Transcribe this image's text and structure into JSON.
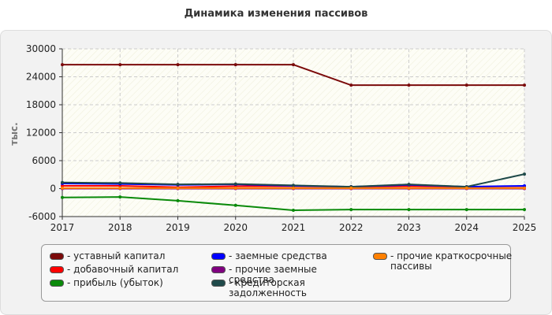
{
  "chart_data": {
    "type": "line",
    "title": "Динамика изменения пассивов",
    "y_label": "тыс.",
    "x": [
      2017,
      2018,
      2019,
      2020,
      2021,
      2022,
      2023,
      2024,
      2025
    ],
    "xlim": [
      2017,
      2025
    ],
    "xticks": [
      2017,
      2018,
      2019,
      2020,
      2021,
      2022,
      2023,
      2024,
      2025
    ],
    "ylim": [
      -6000,
      30000
    ],
    "yticks": [
      -6000,
      0,
      6000,
      12000,
      18000,
      24000,
      30000
    ],
    "grid": true,
    "series": [
      {
        "name": "- уставный капитал",
        "color": "#7b0a0a",
        "values": [
          26600,
          26600,
          26600,
          26600,
          26600,
          22200,
          22200,
          22200,
          22200
        ]
      },
      {
        "name": "- добавочный капитал",
        "color": "#ff0000",
        "values": [
          600,
          600,
          300,
          500,
          500,
          400,
          500,
          400,
          500
        ]
      },
      {
        "name": "- прибыль (убыток)",
        "color": "#0a8a0a",
        "values": [
          -1900,
          -1800,
          -2600,
          -3600,
          -4650,
          -4500,
          -4500,
          -4500,
          -4500
        ]
      },
      {
        "name": "- заемные средства",
        "color": "#0000ff",
        "values": [
          1100,
          1000,
          800,
          900,
          600,
          400,
          800,
          400,
          600
        ]
      },
      {
        "name": "- прочие заемные средства",
        "color": "#800080",
        "values": [
          0,
          0,
          0,
          0,
          0,
          0,
          0,
          0,
          0
        ]
      },
      {
        "name": "- кредиторская задолженность",
        "color": "#1f4a4a",
        "values": [
          1300,
          1200,
          900,
          1000,
          700,
          400,
          900,
          400,
          3100
        ]
      },
      {
        "name": "- прочие краткосрочные пассивы",
        "color": "#ff8000",
        "values": [
          100,
          100,
          100,
          100,
          100,
          100,
          100,
          100,
          100
        ]
      }
    ]
  }
}
